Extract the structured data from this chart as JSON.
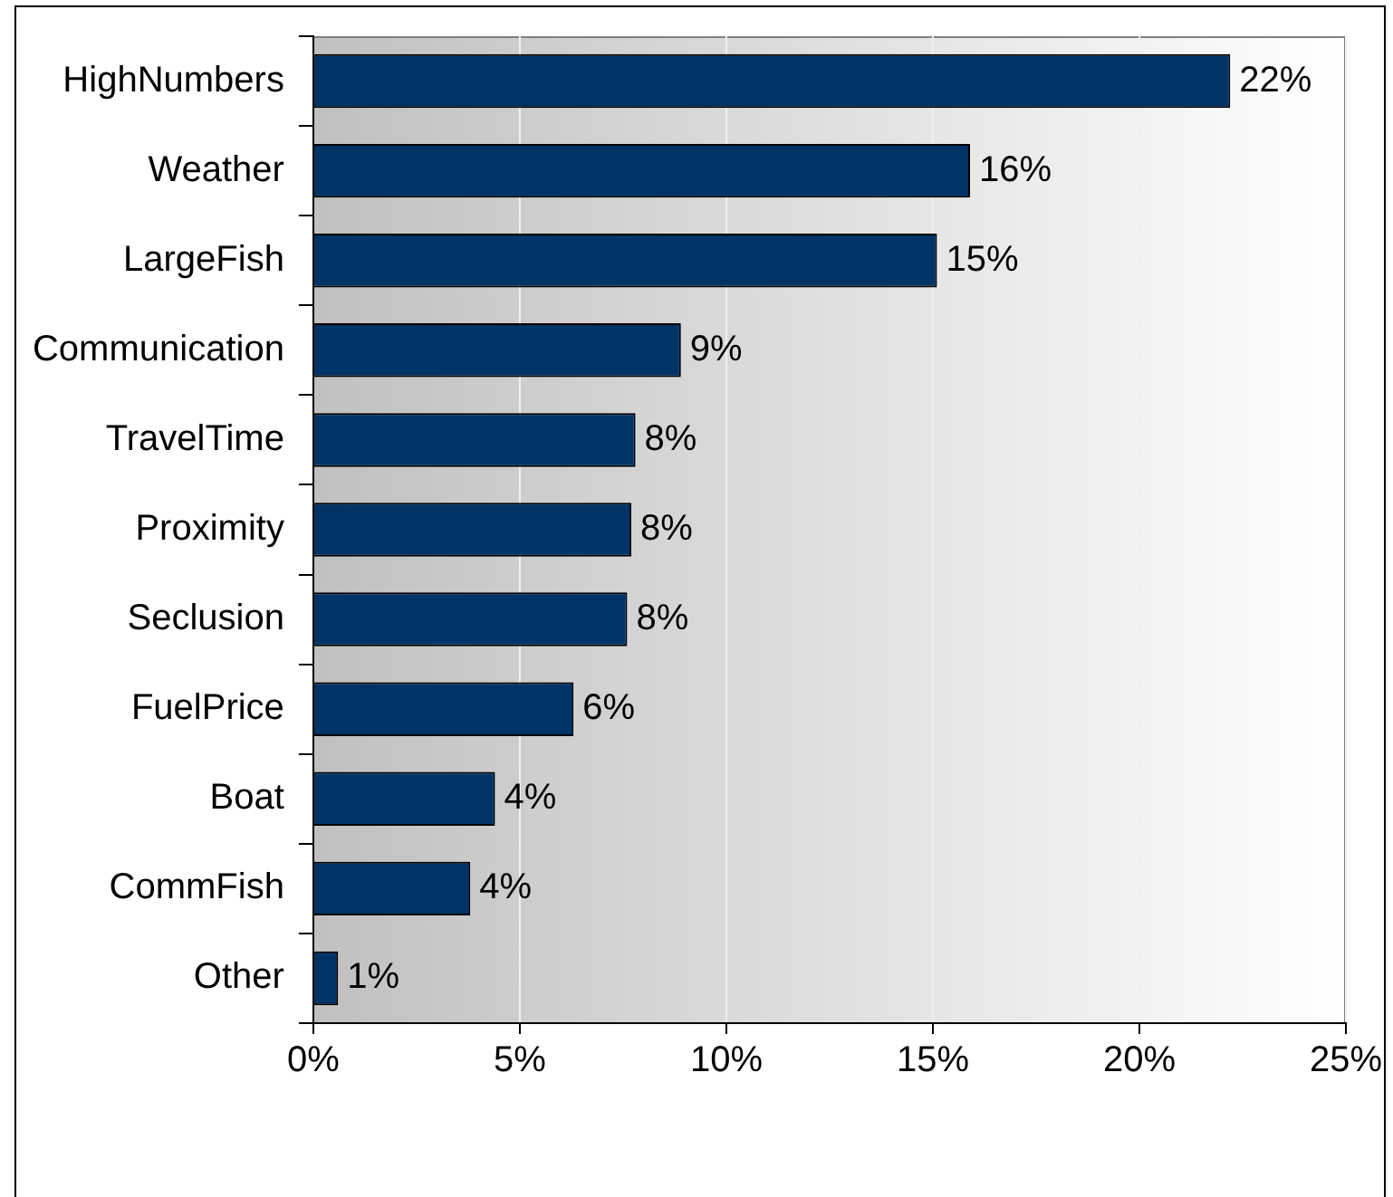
{
  "chart_data": {
    "type": "bar",
    "orientation": "horizontal",
    "categories": [
      "HighNumbers",
      "Weather",
      "LargeFish",
      "Communication",
      "TravelTime",
      "Proximity",
      "Seclusion",
      "FuelPrice",
      "Boat",
      "CommFish",
      "Other"
    ],
    "values": [
      22.2,
      15.9,
      15.1,
      8.9,
      7.8,
      7.7,
      7.6,
      6.3,
      4.4,
      3.8,
      0.6
    ],
    "value_labels": [
      "22%",
      "16%",
      "15%",
      "9%",
      "8%",
      "8%",
      "8%",
      "6%",
      "4%",
      "4%",
      "1%"
    ],
    "color": "#003366",
    "xlim": [
      0,
      25
    ],
    "xticks": [
      {
        "value": 0,
        "label": "0%"
      },
      {
        "value": 5,
        "label": "5%"
      },
      {
        "value": 10,
        "label": "10%"
      },
      {
        "value": 15,
        "label": "15%"
      },
      {
        "value": 20,
        "label": "20%"
      },
      {
        "value": 25,
        "label": "25%"
      }
    ],
    "grid": "x",
    "legend": false
  }
}
